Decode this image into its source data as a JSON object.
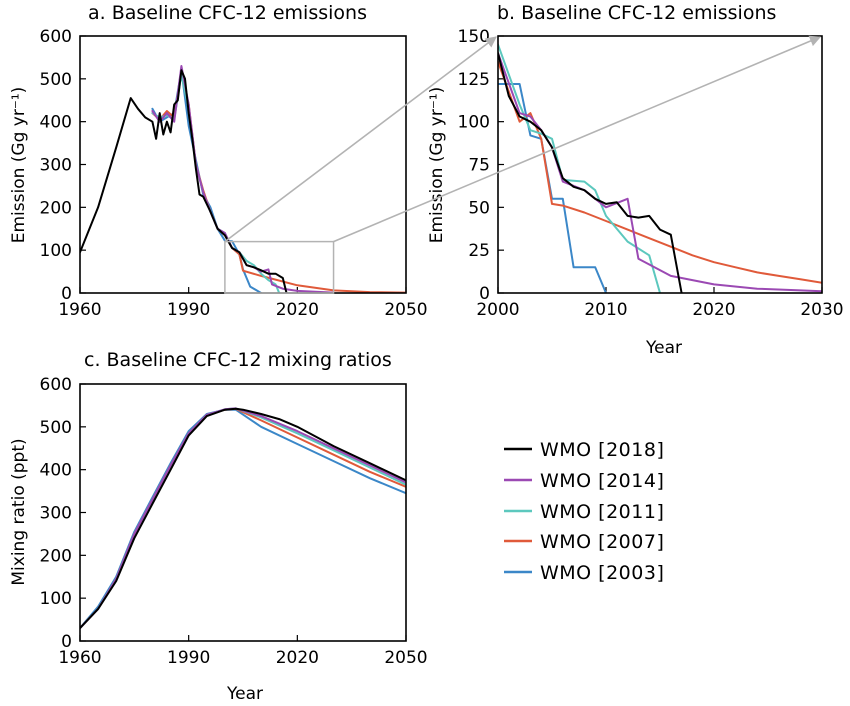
{
  "chart_data": [
    {
      "id": "a",
      "type": "line",
      "title": "a. Baseline CFC-12 emissions",
      "ylabel": "Emission (Gg yr⁻¹)",
      "xlabel": "",
      "xlim": [
        1960,
        2050
      ],
      "ylim": [
        0,
        600
      ],
      "xticks": [
        1960,
        1990,
        2020,
        2050
      ],
      "yticks": [
        0,
        100,
        200,
        300,
        400,
        500,
        600
      ],
      "grid": false,
      "series": [
        {
          "name": "WMO [2003]",
          "color": "#3b87c8",
          "x": [
            1980,
            1982,
            1984,
            1986,
            1988,
            1990,
            1992,
            1994,
            1996,
            1998,
            2000,
            2002,
            2004,
            2005,
            2007,
            2010
          ],
          "y": [
            430,
            400,
            410,
            420,
            520,
            390,
            310,
            230,
            200,
            150,
            122,
            121,
            90,
            55,
            15,
            0
          ]
        },
        {
          "name": "WMO [2007]",
          "color": "#e05a3a",
          "x": [
            1980,
            1982,
            1984,
            1986,
            1988,
            1990,
            1992,
            1994,
            1996,
            1998,
            2000,
            2002,
            2004,
            2005,
            2010,
            2020,
            2030,
            2040,
            2050
          ],
          "y": [
            420,
            405,
            425,
            410,
            515,
            440,
            300,
            240,
            190,
            150,
            135,
            105,
            90,
            52,
            40,
            18,
            6,
            2,
            1
          ]
        },
        {
          "name": "WMO [2011]",
          "color": "#5cc8be",
          "x": [
            1980,
            1982,
            1984,
            1986,
            1988,
            1990,
            1992,
            1994,
            1996,
            1998,
            2000,
            2002,
            2004,
            2006,
            2008,
            2010,
            2012,
            2014,
            2015
          ],
          "y": [
            420,
            410,
            415,
            405,
            510,
            430,
            300,
            235,
            190,
            150,
            140,
            105,
            95,
            75,
            65,
            45,
            30,
            20,
            0
          ]
        },
        {
          "name": "WMO [2014]",
          "color": "#9b49b3",
          "x": [
            1980,
            1982,
            1984,
            1986,
            1988,
            1990,
            1992,
            1994,
            1996,
            1998,
            2000,
            2002,
            2004,
            2006,
            2008,
            2010,
            2012,
            2013,
            2016,
            2020,
            2030
          ],
          "y": [
            425,
            400,
            420,
            400,
            530,
            440,
            300,
            235,
            190,
            150,
            140,
            105,
            95,
            65,
            60,
            50,
            55,
            20,
            10,
            5,
            1
          ]
        },
        {
          "name": "WMO [2018]",
          "color": "#000000",
          "x": [
            1960,
            1965,
            1970,
            1974,
            1976,
            1978,
            1980,
            1981,
            1982,
            1983,
            1984,
            1985,
            1986,
            1987,
            1988,
            1989,
            1990,
            1991,
            1992,
            1993,
            1994,
            1996,
            1998,
            2000,
            2002,
            2004,
            2006,
            2008,
            2010,
            2012,
            2014,
            2016,
            2017
          ],
          "y": [
            95,
            200,
            340,
            455,
            430,
            410,
            400,
            360,
            420,
            370,
            400,
            375,
            440,
            450,
            520,
            500,
            420,
            360,
            290,
            230,
            225,
            190,
            150,
            135,
            105,
            95,
            65,
            60,
            53,
            45,
            45,
            35,
            0
          ]
        }
      ]
    },
    {
      "id": "b",
      "type": "line",
      "title": "b. Baseline CFC-12 emissions",
      "ylabel": "Emission (Gg yr⁻¹)",
      "xlabel": "Year",
      "xlim": [
        2000,
        2030
      ],
      "ylim": [
        0,
        150
      ],
      "xticks": [
        2000,
        2010,
        2020,
        2030
      ],
      "yticks": [
        0,
        25,
        50,
        75,
        100,
        125,
        150
      ],
      "grid": false,
      "series": [
        {
          "name": "WMO [2003]",
          "color": "#3b87c8",
          "x": [
            2000,
            2001,
            2002,
            2003,
            2004,
            2005,
            2006,
            2007,
            2008,
            2009,
            2010
          ],
          "y": [
            122,
            122,
            122,
            92,
            90,
            55,
            55,
            15,
            15,
            15,
            0
          ]
        },
        {
          "name": "WMO [2007]",
          "color": "#e05a3a",
          "x": [
            2000,
            2002,
            2003,
            2004,
            2005,
            2006,
            2008,
            2010,
            2012,
            2014,
            2016,
            2018,
            2020,
            2022,
            2024,
            2026,
            2028,
            2030
          ],
          "y": [
            135,
            100,
            105,
            90,
            52,
            51,
            47,
            42,
            37,
            32,
            27,
            22,
            18,
            15,
            12,
            10,
            8,
            6
          ]
        },
        {
          "name": "WMO [2011]",
          "color": "#5cc8be",
          "x": [
            2000,
            2002,
            2003,
            2004,
            2005,
            2006,
            2008,
            2009,
            2010,
            2012,
            2014,
            2015
          ],
          "y": [
            145,
            110,
            95,
            93,
            90,
            66,
            65,
            60,
            45,
            30,
            22,
            0
          ]
        },
        {
          "name": "WMO [2014]",
          "color": "#9b49b3",
          "x": [
            2000,
            2002,
            2003,
            2004,
            2005,
            2006,
            2008,
            2010,
            2012,
            2013,
            2016,
            2020,
            2024,
            2028,
            2030
          ],
          "y": [
            140,
            105,
            103,
            95,
            85,
            65,
            60,
            50,
            55,
            20,
            10,
            5,
            2.5,
            1.5,
            1
          ]
        },
        {
          "name": "WMO [2018]",
          "color": "#000000",
          "x": [
            2000,
            2001,
            2002,
            2003,
            2004,
            2005,
            2006,
            2007,
            2008,
            2009,
            2010,
            2011,
            2012,
            2013,
            2014,
            2015,
            2016,
            2017
          ],
          "y": [
            140,
            115,
            103,
            100,
            95,
            85,
            67,
            62,
            60,
            55,
            52,
            53,
            45,
            44,
            45,
            37,
            34,
            0
          ]
        }
      ]
    },
    {
      "id": "c",
      "type": "line",
      "title": "c. Baseline CFC-12 mixing ratios",
      "ylabel": "Mixing ratio (ppt)",
      "xlabel": "Year",
      "xlim": [
        1960,
        2050
      ],
      "ylim": [
        0,
        600
      ],
      "xticks": [
        1960,
        1990,
        2020,
        2050
      ],
      "yticks": [
        0,
        100,
        200,
        300,
        400,
        500,
        600
      ],
      "grid": false,
      "series": [
        {
          "name": "WMO [2003]",
          "color": "#3b87c8",
          "x": [
            1960,
            1965,
            1970,
            1975,
            1980,
            1985,
            1990,
            1995,
            2000,
            2003,
            2010,
            2020,
            2030,
            2040,
            2050
          ],
          "y": [
            30,
            80,
            150,
            255,
            335,
            415,
            490,
            530,
            540,
            540,
            500,
            460,
            420,
            380,
            345
          ]
        },
        {
          "name": "WMO [2007]",
          "color": "#e05a3a",
          "x": [
            1960,
            1965,
            1970,
            1975,
            1980,
            1985,
            1990,
            1995,
            2000,
            2003,
            2010,
            2020,
            2030,
            2040,
            2050
          ],
          "y": [
            30,
            75,
            145,
            250,
            330,
            410,
            485,
            528,
            540,
            542,
            515,
            475,
            435,
            395,
            360
          ]
        },
        {
          "name": "WMO [2011]",
          "color": "#5cc8be",
          "x": [
            1960,
            1965,
            1970,
            1975,
            1980,
            1985,
            1990,
            1995,
            2000,
            2003,
            2010,
            2020,
            2030,
            2040,
            2050
          ],
          "y": [
            30,
            75,
            145,
            250,
            330,
            410,
            485,
            528,
            541,
            543,
            522,
            485,
            445,
            405,
            365
          ]
        },
        {
          "name": "WMO [2014]",
          "color": "#9b49b3",
          "x": [
            1960,
            1965,
            1970,
            1975,
            1980,
            1985,
            1990,
            1995,
            2000,
            2003,
            2010,
            2020,
            2030,
            2040,
            2050
          ],
          "y": [
            30,
            75,
            145,
            250,
            330,
            410,
            485,
            528,
            541,
            543,
            525,
            490,
            450,
            410,
            370
          ]
        },
        {
          "name": "WMO [2018]",
          "color": "#000000",
          "x": [
            1960,
            1965,
            1970,
            1975,
            1980,
            1985,
            1990,
            1995,
            2000,
            2003,
            2005,
            2010,
            2015,
            2020,
            2030,
            2040,
            2050
          ],
          "y": [
            30,
            75,
            140,
            240,
            320,
            400,
            480,
            525,
            540,
            542,
            540,
            530,
            518,
            500,
            455,
            415,
            375
          ]
        }
      ]
    }
  ],
  "legend": {
    "placement": "right of panel c",
    "entries": [
      {
        "label": "WMO [2018]",
        "color": "#000000"
      },
      {
        "label": "WMO [2014]",
        "color": "#9b49b3"
      },
      {
        "label": "WMO [2011]",
        "color": "#5cc8be"
      },
      {
        "label": "WMO [2007]",
        "color": "#e05a3a"
      },
      {
        "label": "WMO [2003]",
        "color": "#3b87c8"
      }
    ]
  },
  "zoom_indicator": {
    "color": "#b3b3b3",
    "x_range": [
      2000,
      2030
    ],
    "y_range": [
      0,
      120
    ]
  }
}
